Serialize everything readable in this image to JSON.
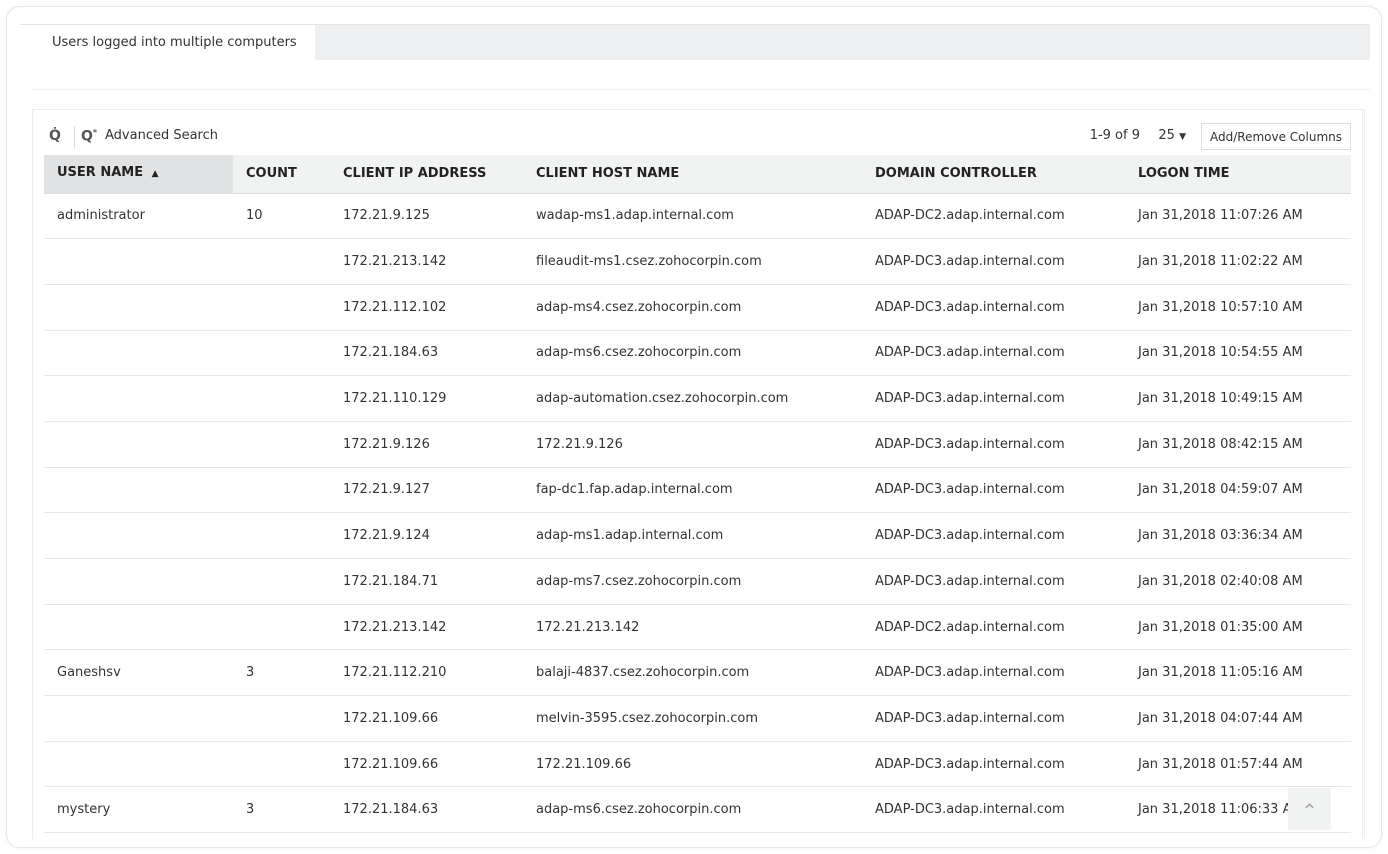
{
  "tab": {
    "label": "Users logged into multiple computers"
  },
  "toolbar": {
    "quick_search_icon": "search-icon",
    "advanced_search_label": "Advanced Search",
    "pagination": "1-9 of 9",
    "per_page": "25",
    "add_remove_columns": "Add/Remove Columns"
  },
  "table": {
    "columns": [
      "USER NAME",
      "COUNT",
      "CLIENT IP ADDRESS",
      "CLIENT HOST NAME",
      "DOMAIN CONTROLLER",
      "LOGON TIME"
    ],
    "sort": {
      "column": "USER NAME",
      "direction": "ascending"
    },
    "rows": [
      [
        "administrator",
        "10",
        "172.21.9.125",
        "wadap-ms1.adap.internal.com",
        "ADAP-DC2.adap.internal.com",
        "Jan 31,2018 11:07:26 AM"
      ],
      [
        "",
        "",
        "172.21.213.142",
        "fileaudit-ms1.csez.zohocorpin.com",
        "ADAP-DC3.adap.internal.com",
        "Jan 31,2018 11:02:22 AM"
      ],
      [
        "",
        "",
        "172.21.112.102",
        "adap-ms4.csez.zohocorpin.com",
        "ADAP-DC3.adap.internal.com",
        "Jan 31,2018 10:57:10 AM"
      ],
      [
        "",
        "",
        "172.21.184.63",
        "adap-ms6.csez.zohocorpin.com",
        "ADAP-DC3.adap.internal.com",
        "Jan 31,2018 10:54:55 AM"
      ],
      [
        "",
        "",
        "172.21.110.129",
        "adap-automation.csez.zohocorpin.com",
        "ADAP-DC3.adap.internal.com",
        "Jan 31,2018 10:49:15 AM"
      ],
      [
        "",
        "",
        "172.21.9.126",
        "172.21.9.126",
        "ADAP-DC3.adap.internal.com",
        "Jan 31,2018 08:42:15 AM"
      ],
      [
        "",
        "",
        "172.21.9.127",
        "fap-dc1.fap.adap.internal.com",
        "ADAP-DC3.adap.internal.com",
        "Jan 31,2018 04:59:07 AM"
      ],
      [
        "",
        "",
        "172.21.9.124",
        "adap-ms1.adap.internal.com",
        "ADAP-DC3.adap.internal.com",
        "Jan 31,2018 03:36:34 AM"
      ],
      [
        "",
        "",
        "172.21.184.71",
        "adap-ms7.csez.zohocorpin.com",
        "ADAP-DC3.adap.internal.com",
        "Jan 31,2018 02:40:08 AM"
      ],
      [
        "",
        "",
        "172.21.213.142",
        "172.21.213.142",
        "ADAP-DC2.adap.internal.com",
        "Jan 31,2018 01:35:00 AM"
      ],
      [
        "Ganeshsv",
        "3",
        "172.21.112.210",
        "balaji-4837.csez.zohocorpin.com",
        "ADAP-DC3.adap.internal.com",
        "Jan 31,2018 11:05:16 AM"
      ],
      [
        "",
        "",
        "172.21.109.66",
        "melvin-3595.csez.zohocorpin.com",
        "ADAP-DC3.adap.internal.com",
        "Jan 31,2018 04:07:44 AM"
      ],
      [
        "",
        "",
        "172.21.109.66",
        "172.21.109.66",
        "ADAP-DC3.adap.internal.com",
        "Jan 31,2018 01:57:44 AM"
      ],
      [
        "mystery",
        "3",
        "172.21.184.63",
        "adap-ms6.csez.zohocorpin.com",
        "ADAP-DC3.adap.internal.com",
        "Jan 31,2018 11:06:33 AM"
      ]
    ]
  },
  "scroll_top_icon": "chevron-up-icon"
}
